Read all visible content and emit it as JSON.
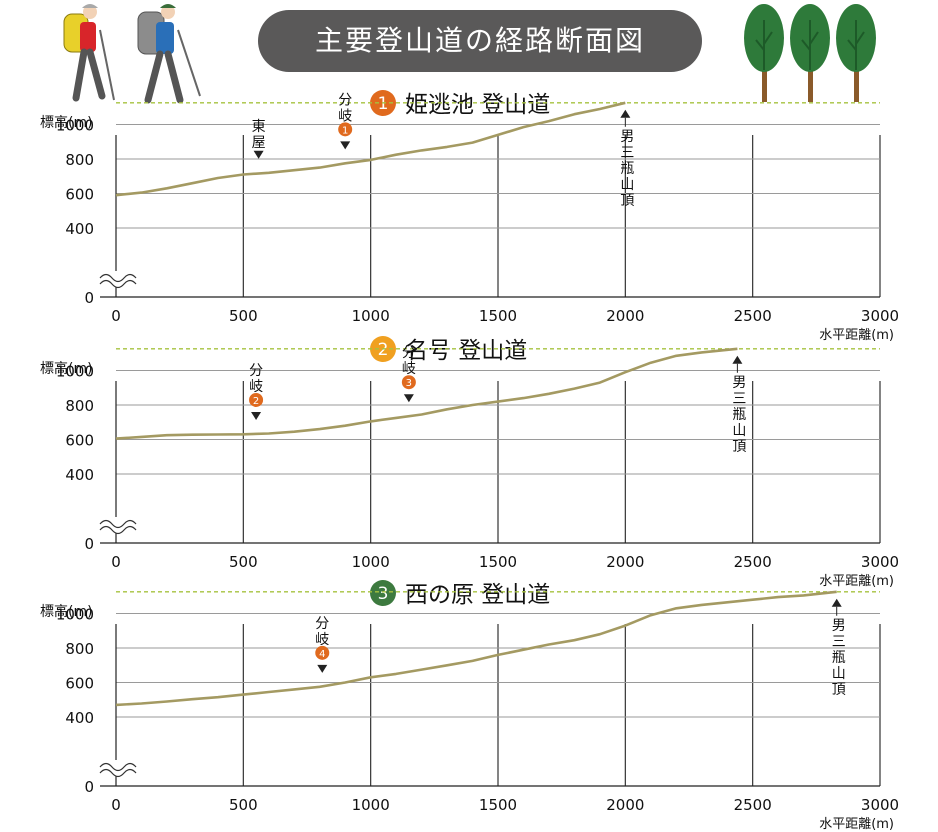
{
  "page_title": "主要登山道の経路断面図",
  "colors": {
    "profile_line": "#a49a62",
    "summit_line": "#a6c23f",
    "grid_line": "#9a9a9a",
    "axis_line": "#222222",
    "orange_marker": "#e06a1e",
    "amber_marker": "#f0a020",
    "green_marker": "#3d7a3f",
    "title_bg": "#5a5959"
  },
  "chart_data": [
    {
      "type": "line",
      "route_number": "1",
      "title": "姫逃池 登山道",
      "ylabel": "標高(m)",
      "xlabel": "水平距離(m)",
      "xlim": [
        0,
        3000
      ],
      "ylim": [
        0,
        1126
      ],
      "x_ticks": [
        "0",
        "500",
        "1000",
        "1500",
        "2000",
        "2500",
        "3000"
      ],
      "y_ticks": [
        "0",
        "400",
        "600",
        "800",
        "1000"
      ],
      "summit_elevation": 1126,
      "x": [
        0,
        100,
        200,
        300,
        400,
        500,
        600,
        700,
        800,
        900,
        1000,
        1100,
        1200,
        1300,
        1400,
        1500,
        1600,
        1700,
        1800,
        1900,
        2000
      ],
      "y": [
        590,
        605,
        630,
        660,
        690,
        710,
        720,
        735,
        750,
        775,
        795,
        825,
        850,
        870,
        895,
        940,
        985,
        1020,
        1060,
        1090,
        1126
      ],
      "annotations": [
        {
          "text": "東屋",
          "x": 560,
          "y": 720,
          "badge": ""
        },
        {
          "text": "分岐",
          "x": 900,
          "y": 775,
          "badge": "1"
        },
        {
          "text": "男三瓶山頂",
          "x": 2000,
          "y": 1126,
          "badge": ""
        }
      ]
    },
    {
      "type": "line",
      "route_number": "2",
      "title": "名号 登山道",
      "ylabel": "標高(m)",
      "xlabel": "水平距離(m)",
      "xlim": [
        0,
        3000
      ],
      "ylim": [
        0,
        1126
      ],
      "x_ticks": [
        "0",
        "500",
        "1000",
        "1500",
        "2000",
        "2500",
        "3000"
      ],
      "y_ticks": [
        "0",
        "400",
        "600",
        "800",
        "1000"
      ],
      "summit_elevation": 1126,
      "x": [
        0,
        100,
        200,
        300,
        400,
        500,
        600,
        700,
        800,
        900,
        1000,
        1100,
        1200,
        1300,
        1400,
        1500,
        1600,
        1700,
        1800,
        1900,
        2000,
        2100,
        2200,
        2300,
        2440
      ],
      "y": [
        605,
        615,
        625,
        628,
        629,
        630,
        635,
        645,
        660,
        680,
        705,
        725,
        745,
        775,
        800,
        820,
        840,
        865,
        895,
        930,
        990,
        1045,
        1085,
        1105,
        1126
      ],
      "annotations": [
        {
          "text": "分岐",
          "x": 550,
          "y": 632,
          "badge": "2"
        },
        {
          "text": "分岐",
          "x": 1150,
          "y": 735,
          "badge": "3"
        },
        {
          "text": "男三瓶山頂",
          "x": 2440,
          "y": 1126,
          "badge": ""
        }
      ]
    },
    {
      "type": "line",
      "route_number": "3",
      "title": "西の原 登山道",
      "ylabel": "標高(m)",
      "xlabel": "水平距離(m)",
      "xlim": [
        0,
        3000
      ],
      "ylim": [
        0,
        1126
      ],
      "x_ticks": [
        "0",
        "500",
        "1000",
        "1500",
        "2000",
        "2500",
        "3000"
      ],
      "y_ticks": [
        "0",
        "400",
        "600",
        "800",
        "1000"
      ],
      "summit_elevation": 1126,
      "x": [
        0,
        100,
        200,
        300,
        400,
        500,
        600,
        700,
        800,
        900,
        1000,
        1100,
        1200,
        1300,
        1400,
        1500,
        1600,
        1700,
        1800,
        1900,
        2000,
        2100,
        2200,
        2300,
        2400,
        2500,
        2600,
        2700,
        2830
      ],
      "y": [
        470,
        478,
        490,
        503,
        515,
        530,
        545,
        560,
        575,
        600,
        630,
        650,
        675,
        700,
        725,
        760,
        790,
        820,
        845,
        880,
        930,
        990,
        1030,
        1050,
        1065,
        1080,
        1095,
        1105,
        1126
      ],
      "annotations": [
        {
          "text": "分岐",
          "x": 810,
          "y": 575,
          "badge": "4"
        },
        {
          "text": "男三瓶山頂",
          "x": 2830,
          "y": 1126,
          "badge": ""
        }
      ]
    }
  ]
}
